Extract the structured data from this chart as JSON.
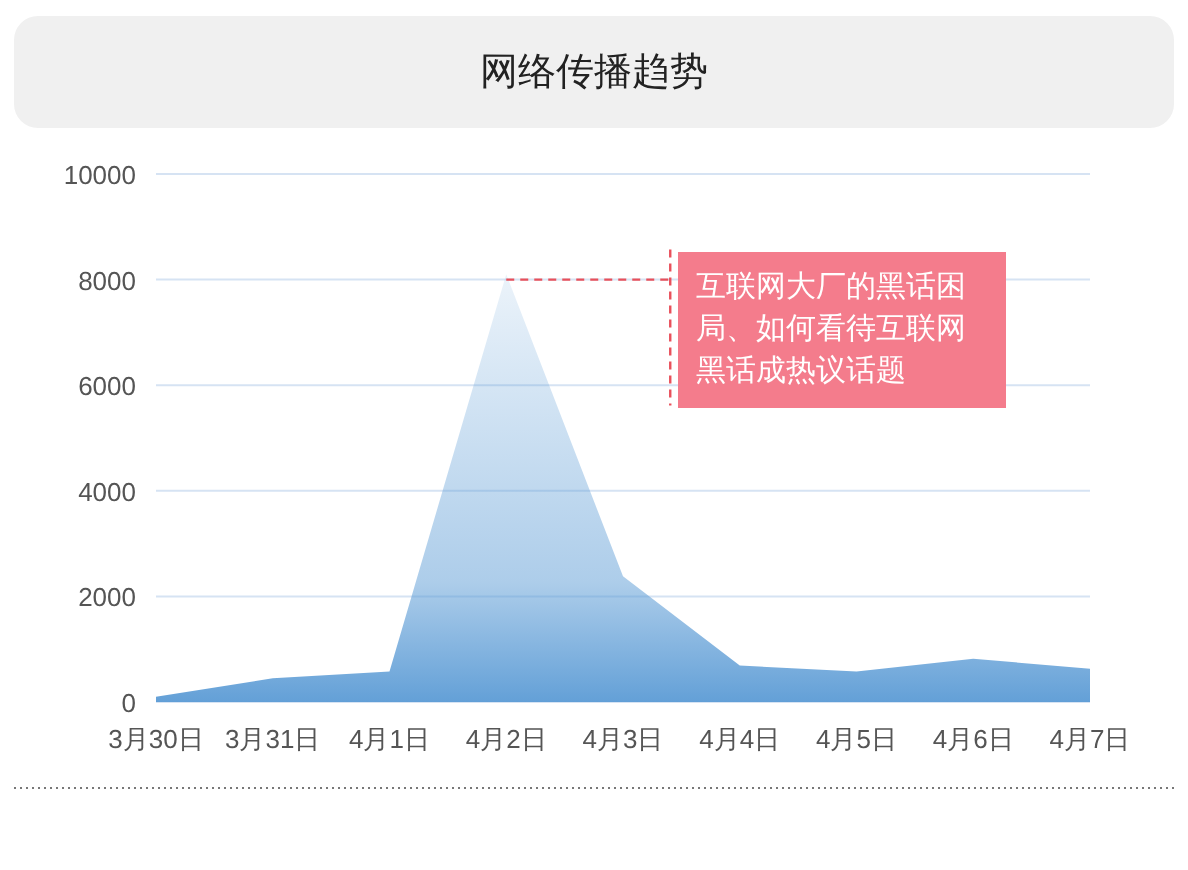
{
  "chart_data": {
    "type": "area",
    "title": "网络传播趋势",
    "categories": [
      "3月30日",
      "3月31日",
      "4月1日",
      "4月2日",
      "4月3日",
      "4月4日",
      "4月5日",
      "4月6日",
      "4月7日"
    ],
    "values": [
      100,
      450,
      580,
      8100,
      2380,
      690,
      580,
      820,
      630
    ],
    "color": "#5b9bd5",
    "ylim": [
      0,
      10000
    ],
    "yticks": [
      0,
      2000,
      4000,
      6000,
      8000,
      10000
    ],
    "grid": "y",
    "annotations": [
      {
        "text": "互联网大厂的黑话困局、如何看待互联网黑话成热议话题",
        "x": "4月2日",
        "y": 8000
      }
    ]
  }
}
